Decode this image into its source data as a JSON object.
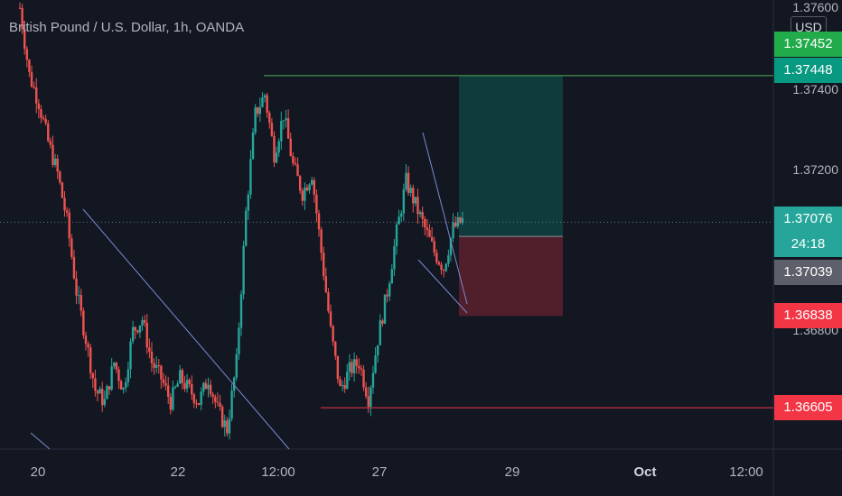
{
  "header": {
    "title": "British Pound / U.S. Dollar, 1h, OANDA",
    "currency": "USD"
  },
  "chart_data": {
    "type": "candlestick",
    "title": "British Pound / U.S. Dollar, 1h, OANDA",
    "ylim": [
      1.365,
      1.3764
    ],
    "x_ticks": [
      "20",
      "22",
      "12:00",
      "27",
      "29",
      "Oct",
      "12:00"
    ],
    "y_ticks": [
      "1.37600",
      "1.37400",
      "1.37200",
      "1.36800"
    ],
    "price_tags": [
      {
        "label": "1.37452",
        "value": 1.37452,
        "color": "#22ab4a"
      },
      {
        "label": "1.37448",
        "value": 1.37448,
        "color": "#089981"
      },
      {
        "label": "1.37076",
        "value": 1.37076,
        "color": "#26a69a"
      },
      {
        "label": "24:18",
        "value": 1.3704,
        "color": "#26a69a"
      },
      {
        "label": "1.37039",
        "value": 1.37039,
        "color": "#5d606b"
      },
      {
        "label": "1.36838",
        "value": 1.36838,
        "color": "#f23645"
      },
      {
        "label": "1.36605",
        "value": 1.36605,
        "color": "#f23645"
      }
    ],
    "horizontal_lines": [
      {
        "value": 1.37448,
        "color": "#4caf50"
      },
      {
        "value": 1.36605,
        "color": "#f23645"
      },
      {
        "value": 1.37076,
        "color": "#5a7d82"
      }
    ],
    "position": {
      "entry": 1.3704,
      "target": 1.37448,
      "stop": 1.36838
    },
    "candles_ohlc_sampled": [
      1.3762,
      1.3745,
      1.3738,
      1.3728,
      1.372,
      1.3708,
      1.369,
      1.3678,
      1.3665,
      1.3662,
      1.3672,
      1.3665,
      1.368,
      1.3683,
      1.3672,
      1.3668,
      1.3662,
      1.3668,
      1.3665,
      1.3662,
      1.3668,
      1.366,
      1.3655,
      1.3672,
      1.371,
      1.3735,
      1.374,
      1.3725,
      1.3735,
      1.3722,
      1.3715,
      1.372,
      1.37,
      1.368,
      1.3665,
      1.367,
      1.3672,
      1.3663,
      1.3678,
      1.369,
      1.3705,
      1.3718,
      1.3712,
      1.3706,
      1.37,
      1.3696,
      1.3706,
      1.3708
    ]
  }
}
